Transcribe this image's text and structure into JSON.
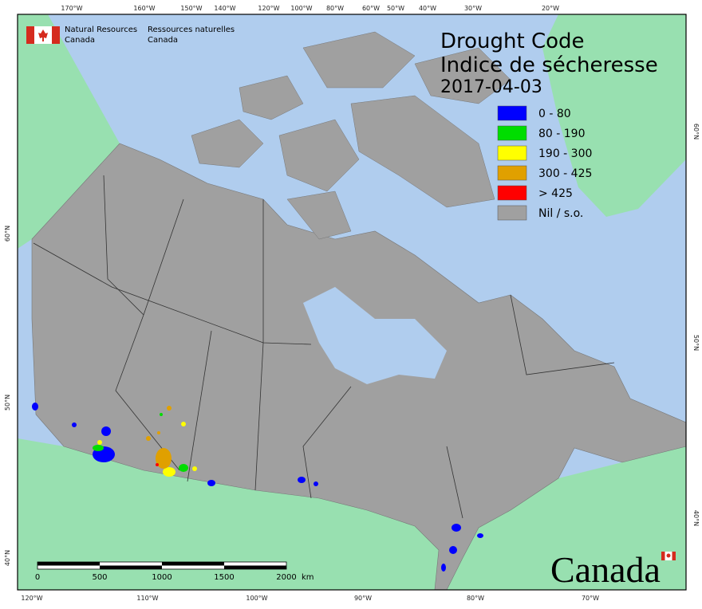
{
  "header": {
    "agency_en": [
      "Natural Resources",
      "Canada"
    ],
    "agency_fr": [
      "Ressources naturelles",
      "Canada"
    ]
  },
  "title": [
    "Drought Code",
    "Indice de sécheresse"
  ],
  "date": "2017-04-03",
  "legend": [
    {
      "label": "0 - 80",
      "color": "#0000ff"
    },
    {
      "label": "80 - 190",
      "color": "#00dd00"
    },
    {
      "label": "190 - 300",
      "color": "#ffff00"
    },
    {
      "label": "300 - 425",
      "color": "#e0a000"
    },
    {
      "label": "> 425",
      "color": "#ff0000"
    },
    {
      "label": "Nil / s.o.",
      "color": "#a0a0a0"
    }
  ],
  "graticule": {
    "top": [
      "170°W",
      "160°W",
      "150°W",
      "140°W",
      "120°W",
      "100°W",
      "80°W",
      "60°W",
      "50°W",
      "40°W",
      "30°W",
      "20°W"
    ],
    "bottom": [
      "120°W",
      "110°W",
      "100°W",
      "90°W",
      "80°W",
      "70°W"
    ],
    "left": [
      "60°N",
      "50°N",
      "40°N"
    ],
    "right": [
      "60°N",
      "50°N",
      "40°N"
    ]
  },
  "scale_bar": {
    "ticks": [
      "0",
      "500",
      "1000",
      "1500",
      "2000"
    ],
    "unit": "km"
  },
  "wordmark": "Canada"
}
